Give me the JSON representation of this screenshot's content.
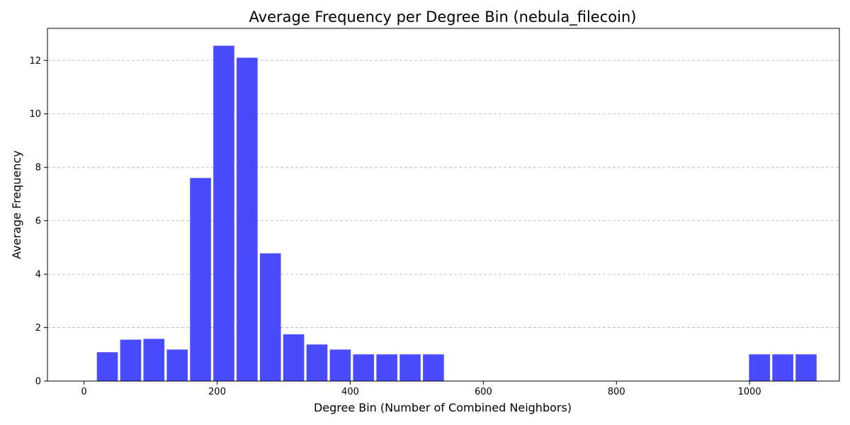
{
  "chart_data": {
    "type": "bar",
    "title": "Average Frequency per Degree Bin (nebula_filecoin)",
    "xlabel": "Degree Bin (Number of Combined Neighbors)",
    "ylabel": "Average Frequency",
    "xlim": [
      -55,
      1135
    ],
    "ylim": [
      0,
      13.2
    ],
    "bar_width": 31.5,
    "bar_color": "#4a4aff",
    "grid": "y-dashed",
    "x_ticks": [
      0,
      200,
      400,
      600,
      800,
      1000
    ],
    "y_ticks": [
      0,
      2,
      4,
      6,
      8,
      10,
      12
    ],
    "bars": [
      {
        "x": 35,
        "value": 1.08
      },
      {
        "x": 70,
        "value": 1.55
      },
      {
        "x": 105,
        "value": 1.58
      },
      {
        "x": 140,
        "value": 1.18
      },
      {
        "x": 175,
        "value": 7.6
      },
      {
        "x": 210,
        "value": 12.55
      },
      {
        "x": 245,
        "value": 12.1
      },
      {
        "x": 280,
        "value": 4.78
      },
      {
        "x": 315,
        "value": 1.75
      },
      {
        "x": 350,
        "value": 1.37
      },
      {
        "x": 385,
        "value": 1.18
      },
      {
        "x": 420,
        "value": 1.0
      },
      {
        "x": 455,
        "value": 1.0
      },
      {
        "x": 490,
        "value": 1.0
      },
      {
        "x": 525,
        "value": 1.0
      },
      {
        "x": 1015,
        "value": 1.0
      },
      {
        "x": 1050,
        "value": 1.0
      },
      {
        "x": 1085,
        "value": 1.0
      }
    ]
  }
}
